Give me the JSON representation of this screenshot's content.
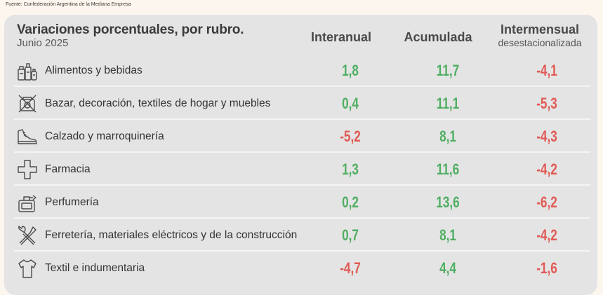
{
  "source": "Fuente: Confederación Argentina de la Mediana Empresa",
  "header": {
    "title": "Variaciones porcentuales, por rubro.",
    "subtitle": "Junio 2025",
    "col1": "Interanual",
    "col2": "Acumulada",
    "col3": "Intermensual",
    "col3_sub": "desestacionalizada"
  },
  "colors": {
    "positive": "#4fae62",
    "negative": "#e05a55",
    "card": "#e4e4e4"
  },
  "rows": [
    {
      "icon": "groceries-icon",
      "label": "Alimentos y bebidas",
      "interanual": "1,8",
      "acumulada": "11,7",
      "intermensual": "-4,1"
    },
    {
      "icon": "no-decor-icon",
      "label": "Bazar, decoración, textiles de hogar y muebles",
      "interanual": "0,4",
      "acumulada": "11,1",
      "intermensual": "-5,3"
    },
    {
      "icon": "shoe-icon",
      "label": "Calzado y marroquinería",
      "interanual": "-5,2",
      "acumulada": "8,1",
      "intermensual": "-4,3"
    },
    {
      "icon": "pharmacy-cross-icon",
      "label": "Farmacia",
      "interanual": "1,3",
      "acumulada": "11,6",
      "intermensual": "-4,2"
    },
    {
      "icon": "perfume-icon",
      "label": "Perfumería",
      "interanual": "0,2",
      "acumulada": "13,6",
      "intermensual": "-6,2"
    },
    {
      "icon": "tools-icon",
      "label": "Ferretería, materiales eléctricos y de la construcción",
      "interanual": "0,7",
      "acumulada": "8,1",
      "intermensual": "-4,2"
    },
    {
      "icon": "shirt-icon",
      "label": "Textil e indumentaria",
      "interanual": "-4,7",
      "acumulada": "4,4",
      "intermensual": "-1,6"
    }
  ]
}
